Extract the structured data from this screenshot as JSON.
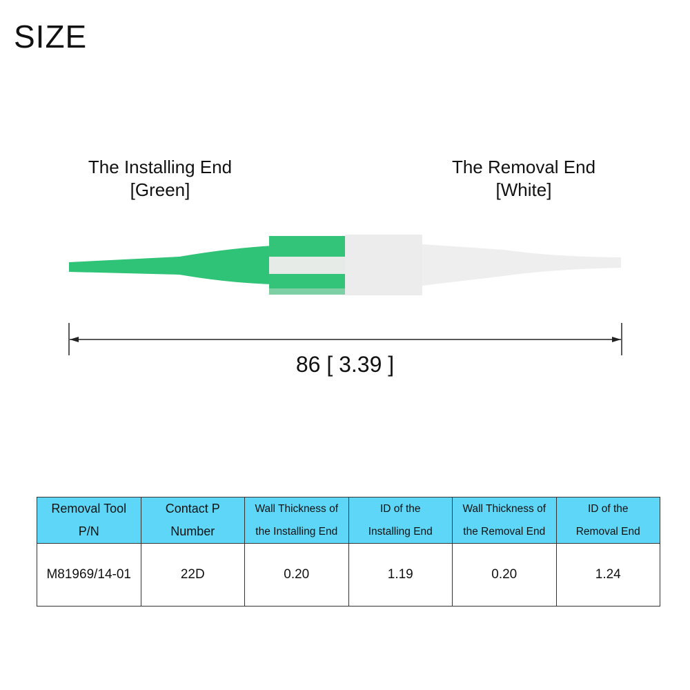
{
  "title": "SIZE",
  "installing_end": {
    "line1": "The Installing End",
    "line2": "[Green]",
    "color": "#2fc377"
  },
  "removal_end": {
    "line1": "The Removal End",
    "line2": "[White]",
    "color": "#eeeeee"
  },
  "dimension": "86 [ 3.39 ]",
  "table": {
    "header_color": "#5dd6f7",
    "headers": [
      [
        "Removal Tool",
        "P/N"
      ],
      [
        "Contact P",
        "Number"
      ],
      [
        "Wall Thickness of",
        "the Installing End"
      ],
      [
        "ID of the",
        "Installing End"
      ],
      [
        "Wall Thickness of",
        "the Removal End"
      ],
      [
        "ID of the",
        "Removal End"
      ]
    ],
    "rows": [
      [
        "M81969/14-01",
        "22D",
        "0.20",
        "1.19",
        "0.20",
        "1.24"
      ]
    ]
  }
}
